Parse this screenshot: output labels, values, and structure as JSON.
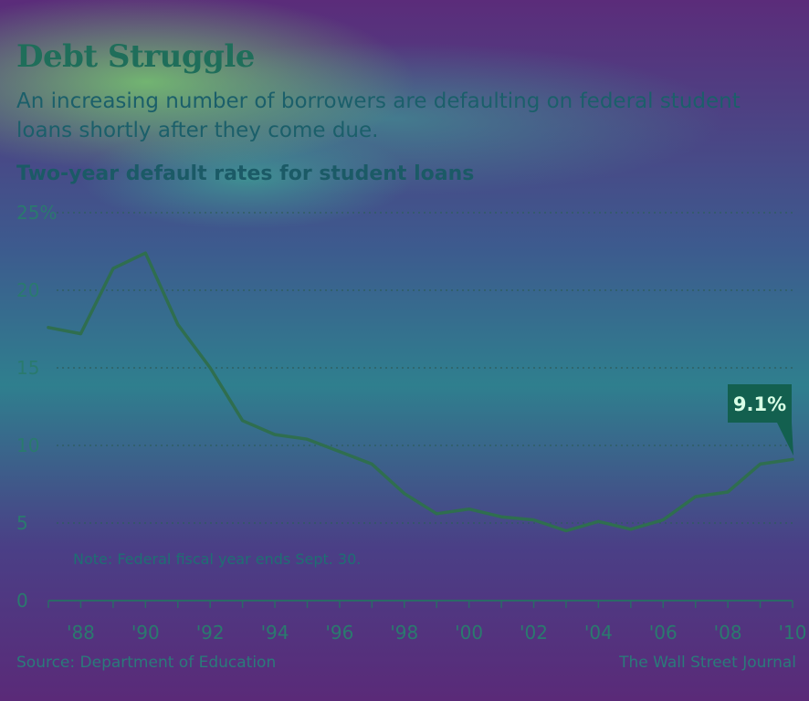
{
  "header": {
    "title": "Debt Struggle",
    "subtitle": "An increasing number of borrowers are defaulting on federal student loans shortly after they come due."
  },
  "chart_data": {
    "type": "line",
    "title": "Two-year default rates for student loans",
    "ylabel": "",
    "xlabel": "",
    "ylim": [
      0,
      25
    ],
    "xlim": [
      1987,
      2010
    ],
    "grid": true,
    "y_ticks": [
      0,
      5,
      10,
      15,
      20,
      25
    ],
    "y_ticks_labels": [
      "0",
      "5",
      "10",
      "15",
      "20",
      "25"
    ],
    "y_unit": "%",
    "x_ticks": [
      1988,
      1990,
      1992,
      1994,
      1996,
      1998,
      2000,
      2002,
      2004,
      2006,
      2008,
      2010
    ],
    "x_tick_labels": [
      "'88",
      "'90",
      "'92",
      "'94",
      "'96",
      "'98",
      "'00",
      "'02",
      "'04",
      "'06",
      "'08",
      "'10"
    ],
    "series": [
      {
        "x": [
          1987,
          1988,
          1989,
          1990,
          1991,
          1992,
          1993,
          1994,
          1995,
          1996,
          1997,
          1998,
          1999,
          2000,
          2001,
          2002,
          2003,
          2004,
          2005,
          2006,
          2007,
          2008,
          2009,
          2010
        ],
        "values": [
          17.6,
          17.2,
          21.4,
          22.4,
          17.8,
          15.0,
          11.6,
          10.7,
          10.4,
          9.6,
          8.8,
          6.9,
          5.6,
          5.9,
          5.4,
          5.2,
          4.5,
          5.1,
          4.6,
          5.2,
          6.7,
          7.0,
          8.8,
          9.1
        ]
      }
    ],
    "callout": {
      "label": "9.1%",
      "x": 2010,
      "value": 9.1
    },
    "note": "Note: Federal fiscal year ends Sept. 30."
  },
  "footer": {
    "source": "Source: Department of Education",
    "credit": "The Wall Street Journal"
  },
  "colors": {
    "line": "#2f6e4f",
    "callout_bg": "#13604f",
    "callout_text": "#d8ffe6",
    "grid": "#2d5c5c"
  }
}
